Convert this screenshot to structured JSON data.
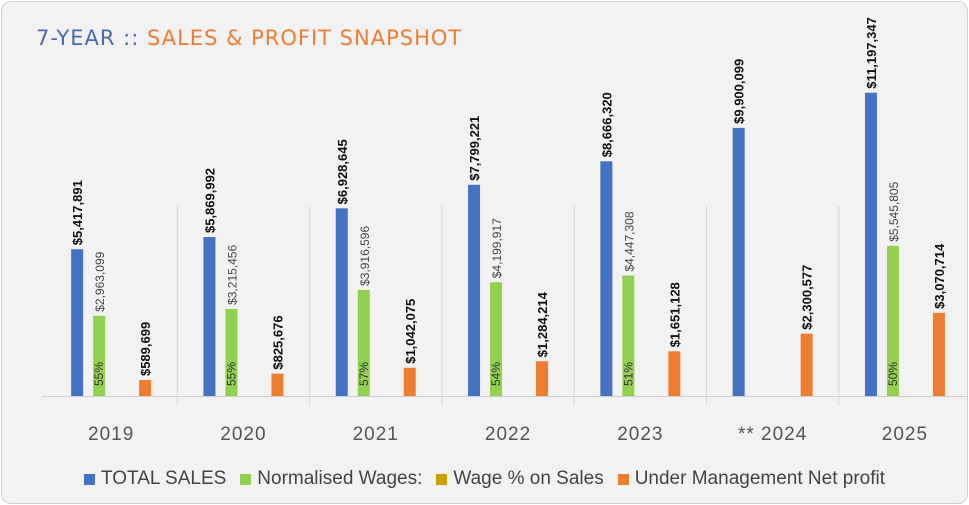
{
  "chart_data": {
    "type": "bar",
    "title_part1": "7-YEAR :: ",
    "title_part2": "SALES & PROFIT SNAPSHOT",
    "categories": [
      "2019",
      "2020",
      "2021",
      "2022",
      "2023",
      "** 2024",
      "2025"
    ],
    "series": [
      {
        "name": "TOTAL SALES",
        "color": "#4472c4",
        "values": [
          5417891,
          5869992,
          6928645,
          7799221,
          8666320,
          9900099,
          11197347
        ],
        "labels": [
          "$5,417,891",
          "$5,869,992",
          "$6,928,645",
          "$7,799,221",
          "$8,666,320",
          "$9,900,099",
          "$11,197,347"
        ]
      },
      {
        "name": "Normalised Wages:",
        "color": "#92d050",
        "values": [
          2963099,
          3215456,
          3916596,
          4199917,
          4447308,
          null,
          5545805
        ],
        "labels": [
          "$2,963,099",
          "$3,215,456",
          "$3,916,596",
          "$4,199,917",
          "$4,447,308",
          null,
          "$5,545,805"
        ]
      },
      {
        "name": "Wage % on Sales",
        "color": "#c9a000",
        "values": [
          0.55,
          0.55,
          0.57,
          0.54,
          0.51,
          null,
          0.5
        ],
        "labels": [
          "55%",
          "55%",
          "57%",
          "54%",
          "51%",
          null,
          "50%"
        ]
      },
      {
        "name": "Under Management Net profit",
        "color": "#ed7d31",
        "values": [
          589699,
          825676,
          1042075,
          1284214,
          1651128,
          2300577,
          3070714
        ],
        "labels": [
          "$589,699",
          "$825,676",
          "$1,042,075",
          "$1,284,214",
          "$1,651,128",
          "$2,300,577",
          "$3,070,714"
        ]
      }
    ],
    "ylim": [
      0,
      12000000
    ],
    "grid": false,
    "legend_position": "bottom"
  }
}
